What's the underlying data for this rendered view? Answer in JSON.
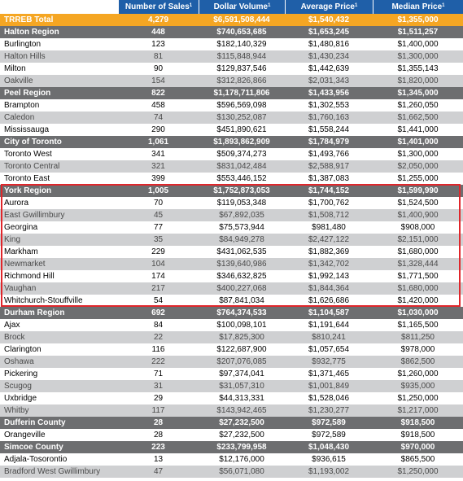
{
  "headers": [
    "Number of Sales",
    "Dollar Volume",
    "Average Price",
    "Median Price"
  ],
  "header_sup": "1",
  "highlight_color": "#e0262b",
  "rows": [
    {
      "type": "total",
      "name": "TRREB Total",
      "sales": "4,279",
      "volume": "$6,591,508,444",
      "avg": "$1,540,432",
      "median": "$1,355,000"
    },
    {
      "type": "region",
      "name": "Halton Region",
      "sales": "448",
      "volume": "$740,653,685",
      "avg": "$1,653,245",
      "median": "$1,511,257"
    },
    {
      "type": "muni",
      "name": "Burlington",
      "sales": "123",
      "volume": "$182,140,329",
      "avg": "$1,480,816",
      "median": "$1,400,000"
    },
    {
      "type": "muni",
      "name": "Halton Hills",
      "sales": "81",
      "volume": "$115,848,944",
      "avg": "$1,430,234",
      "median": "$1,300,000"
    },
    {
      "type": "muni",
      "name": "Milton",
      "sales": "90",
      "volume": "$129,837,546",
      "avg": "$1,442,639",
      "median": "$1,355,143"
    },
    {
      "type": "muni",
      "name": "Oakville",
      "sales": "154",
      "volume": "$312,826,866",
      "avg": "$2,031,343",
      "median": "$1,820,000"
    },
    {
      "type": "region",
      "name": "Peel Region",
      "sales": "822",
      "volume": "$1,178,711,806",
      "avg": "$1,433,956",
      "median": "$1,345,000"
    },
    {
      "type": "muni",
      "name": "Brampton",
      "sales": "458",
      "volume": "$596,569,098",
      "avg": "$1,302,553",
      "median": "$1,260,050"
    },
    {
      "type": "muni",
      "name": "Caledon",
      "sales": "74",
      "volume": "$130,252,087",
      "avg": "$1,760,163",
      "median": "$1,662,500"
    },
    {
      "type": "muni",
      "name": "Mississauga",
      "sales": "290",
      "volume": "$451,890,621",
      "avg": "$1,558,244",
      "median": "$1,441,000"
    },
    {
      "type": "region",
      "name": "City of Toronto",
      "sales": "1,061",
      "volume": "$1,893,862,909",
      "avg": "$1,784,979",
      "median": "$1,401,000"
    },
    {
      "type": "muni",
      "name": "Toronto West",
      "sales": "341",
      "volume": "$509,374,273",
      "avg": "$1,493,766",
      "median": "$1,300,000"
    },
    {
      "type": "muni",
      "name": "Toronto Central",
      "sales": "321",
      "volume": "$831,042,484",
      "avg": "$2,588,917",
      "median": "$2,050,000"
    },
    {
      "type": "muni",
      "name": "Toronto East",
      "sales": "399",
      "volume": "$553,446,152",
      "avg": "$1,387,083",
      "median": "$1,255,000"
    },
    {
      "type": "region",
      "name": "York Region",
      "sales": "1,005",
      "volume": "$1,752,873,053",
      "avg": "$1,744,152",
      "median": "$1,599,990"
    },
    {
      "type": "muni",
      "name": "Aurora",
      "sales": "70",
      "volume": "$119,053,348",
      "avg": "$1,700,762",
      "median": "$1,524,500"
    },
    {
      "type": "muni",
      "name": "East Gwillimbury",
      "sales": "45",
      "volume": "$67,892,035",
      "avg": "$1,508,712",
      "median": "$1,400,900"
    },
    {
      "type": "muni",
      "name": "Georgina",
      "sales": "77",
      "volume": "$75,573,944",
      "avg": "$981,480",
      "median": "$908,000"
    },
    {
      "type": "muni",
      "name": "King",
      "sales": "35",
      "volume": "$84,949,278",
      "avg": "$2,427,122",
      "median": "$2,151,000"
    },
    {
      "type": "muni",
      "name": "Markham",
      "sales": "229",
      "volume": "$431,062,535",
      "avg": "$1,882,369",
      "median": "$1,680,000"
    },
    {
      "type": "muni",
      "name": "Newmarket",
      "sales": "104",
      "volume": "$139,640,986",
      "avg": "$1,342,702",
      "median": "$1,328,444"
    },
    {
      "type": "muni",
      "name": "Richmond Hill",
      "sales": "174",
      "volume": "$346,632,825",
      "avg": "$1,992,143",
      "median": "$1,771,500"
    },
    {
      "type": "muni",
      "name": "Vaughan",
      "sales": "217",
      "volume": "$400,227,068",
      "avg": "$1,844,364",
      "median": "$1,680,000"
    },
    {
      "type": "muni",
      "name": "Whitchurch-Stouffville",
      "sales": "54",
      "volume": "$87,841,034",
      "avg": "$1,626,686",
      "median": "$1,420,000"
    },
    {
      "type": "region",
      "name": "Durham Region",
      "sales": "692",
      "volume": "$764,374,533",
      "avg": "$1,104,587",
      "median": "$1,030,000"
    },
    {
      "type": "muni",
      "name": "Ajax",
      "sales": "84",
      "volume": "$100,098,101",
      "avg": "$1,191,644",
      "median": "$1,165,500"
    },
    {
      "type": "muni",
      "name": "Brock",
      "sales": "22",
      "volume": "$17,825,300",
      "avg": "$810,241",
      "median": "$811,250"
    },
    {
      "type": "muni",
      "name": "Clarington",
      "sales": "116",
      "volume": "$122,687,900",
      "avg": "$1,057,654",
      "median": "$978,000"
    },
    {
      "type": "muni",
      "name": "Oshawa",
      "sales": "222",
      "volume": "$207,076,085",
      "avg": "$932,775",
      "median": "$862,500"
    },
    {
      "type": "muni",
      "name": "Pickering",
      "sales": "71",
      "volume": "$97,374,041",
      "avg": "$1,371,465",
      "median": "$1,260,000"
    },
    {
      "type": "muni",
      "name": "Scugog",
      "sales": "31",
      "volume": "$31,057,310",
      "avg": "$1,001,849",
      "median": "$935,000"
    },
    {
      "type": "muni",
      "name": "Uxbridge",
      "sales": "29",
      "volume": "$44,313,331",
      "avg": "$1,528,046",
      "median": "$1,250,000"
    },
    {
      "type": "muni",
      "name": "Whitby",
      "sales": "117",
      "volume": "$143,942,465",
      "avg": "$1,230,277",
      "median": "$1,217,000"
    },
    {
      "type": "region",
      "name": "Dufferin County",
      "sales": "28",
      "volume": "$27,232,500",
      "avg": "$972,589",
      "median": "$918,500"
    },
    {
      "type": "muni",
      "name": "Orangeville",
      "sales": "28",
      "volume": "$27,232,500",
      "avg": "$972,589",
      "median": "$918,500"
    },
    {
      "type": "region",
      "name": "Simcoe County",
      "sales": "223",
      "volume": "$233,799,958",
      "avg": "$1,048,430",
      "median": "$970,000"
    },
    {
      "type": "muni",
      "name": "Adjala-Tosorontio",
      "sales": "13",
      "volume": "$12,176,000",
      "avg": "$936,615",
      "median": "$865,500"
    },
    {
      "type": "muni",
      "name": "Bradford West Gwillimbury",
      "sales": "47",
      "volume": "$56,071,080",
      "avg": "$1,193,002",
      "median": "$1,250,000"
    }
  ]
}
